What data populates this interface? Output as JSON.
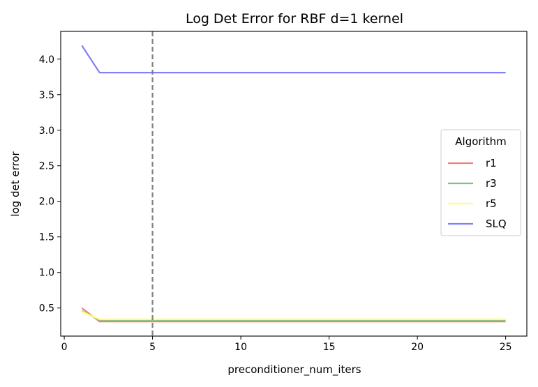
{
  "chart_data": {
    "type": "line",
    "title": "Log Det Error for RBF d=1 kernel",
    "xlabel": "preconditioner_num_iters",
    "ylabel": "log det error",
    "xlim": [
      -0.2,
      26.2
    ],
    "ylim": [
      0.105,
      4.39
    ],
    "xticks": [
      0,
      5,
      10,
      15,
      20,
      25
    ],
    "yticks": [
      0.5,
      1.0,
      1.5,
      2.0,
      2.5,
      3.0,
      3.5,
      4.0
    ],
    "ytick_labels": [
      "0.5",
      "1.0",
      "1.5",
      "2.0",
      "2.5",
      "3.0",
      "3.5",
      "4.0"
    ],
    "vline": {
      "x": 5,
      "color": "#808080",
      "style": "dashed"
    },
    "legend": {
      "title": "Algorithm",
      "position": "center-right"
    },
    "x": [
      1,
      2,
      3,
      4,
      5,
      6,
      7,
      8,
      9,
      10,
      11,
      12,
      13,
      14,
      15,
      16,
      17,
      18,
      19,
      20,
      21,
      22,
      23,
      24,
      25
    ],
    "series": [
      {
        "name": "r1",
        "color": "#f08080",
        "values": [
          0.5,
          0.31,
          0.31,
          0.31,
          0.31,
          0.31,
          0.31,
          0.31,
          0.31,
          0.31,
          0.31,
          0.31,
          0.31,
          0.31,
          0.31,
          0.31,
          0.31,
          0.31,
          0.31,
          0.31,
          0.31,
          0.31,
          0.31,
          0.31,
          0.31
        ]
      },
      {
        "name": "r3",
        "color": "#80c080",
        "values": [
          0.46,
          0.33,
          0.33,
          0.33,
          0.33,
          0.33,
          0.33,
          0.33,
          0.33,
          0.33,
          0.33,
          0.33,
          0.33,
          0.33,
          0.33,
          0.33,
          0.33,
          0.33,
          0.33,
          0.33,
          0.33,
          0.33,
          0.33,
          0.33,
          0.33
        ]
      },
      {
        "name": "r5",
        "color": "#ffff70",
        "values": [
          0.45,
          0.34,
          0.34,
          0.34,
          0.34,
          0.34,
          0.34,
          0.34,
          0.34,
          0.34,
          0.34,
          0.34,
          0.34,
          0.34,
          0.34,
          0.34,
          0.34,
          0.34,
          0.34,
          0.34,
          0.34,
          0.34,
          0.34,
          0.34,
          0.34
        ]
      },
      {
        "name": "SLQ",
        "color": "#8080f8",
        "values": [
          4.19,
          3.81,
          3.81,
          3.81,
          3.81,
          3.81,
          3.81,
          3.81,
          3.81,
          3.81,
          3.81,
          3.81,
          3.81,
          3.81,
          3.81,
          3.81,
          3.81,
          3.81,
          3.81,
          3.81,
          3.81,
          3.81,
          3.81,
          3.81,
          3.81
        ]
      }
    ]
  }
}
